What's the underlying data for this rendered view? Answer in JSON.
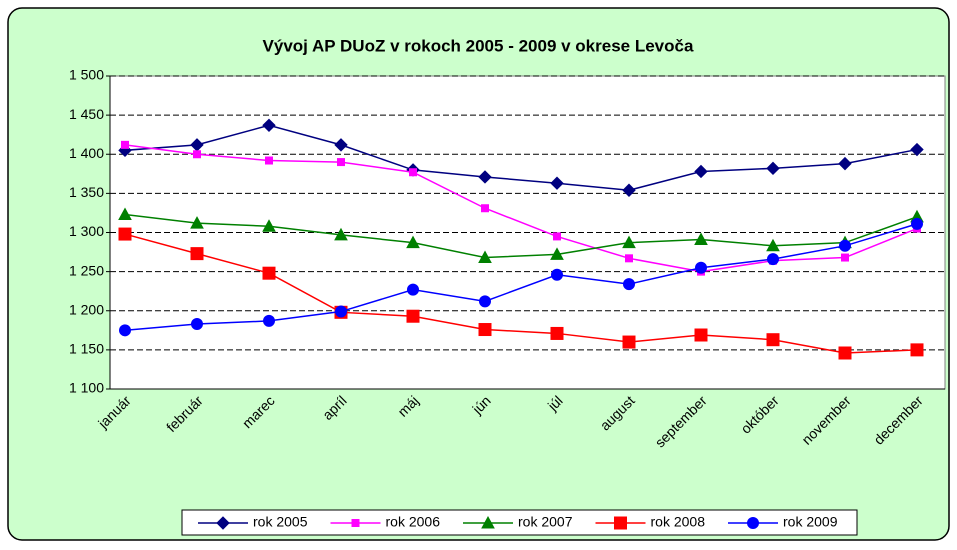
{
  "chart_data": {
    "type": "line",
    "title": "Vývoj AP DUoZ v rokoch 2005 - 2009 v okrese Levoča",
    "categories": [
      "január",
      "február",
      "marec",
      "apríl",
      "máj",
      "jún",
      "júl",
      "august",
      "september",
      "október",
      "november",
      "december"
    ],
    "series": [
      {
        "name": "rok 2005",
        "color": "#000080",
        "marker": "diamond",
        "values": [
          1405,
          1412,
          1437,
          1412,
          1380,
          1371,
          1363,
          1354,
          1378,
          1382,
          1388,
          1406
        ]
      },
      {
        "name": "rok 2006",
        "color": "#ff00ff",
        "marker": "small-square",
        "values": [
          1412,
          1400,
          1392,
          1390,
          1377,
          1331,
          1295,
          1267,
          1250,
          1264,
          1268,
          1305
        ]
      },
      {
        "name": "rok 2007",
        "color": "#008000",
        "marker": "triangle",
        "values": [
          1323,
          1312,
          1308,
          1297,
          1287,
          1268,
          1272,
          1287,
          1291,
          1283,
          1287,
          1320
        ]
      },
      {
        "name": "rok 2008",
        "color": "#ff0000",
        "marker": "square",
        "values": [
          1298,
          1273,
          1248,
          1198,
          1193,
          1176,
          1171,
          1160,
          1169,
          1163,
          1146,
          1150
        ]
      },
      {
        "name": "rok 2009",
        "color": "#0000ff",
        "marker": "circle",
        "values": [
          1175,
          1183,
          1187,
          1199,
          1227,
          1212,
          1246,
          1234,
          1255,
          1266,
          1283,
          1311
        ]
      }
    ],
    "ylim": [
      1100,
      1500
    ],
    "yticks": [
      {
        "value": 1100,
        "label": "1 100"
      },
      {
        "value": 1150,
        "label": "1 150"
      },
      {
        "value": 1200,
        "label": "1 200"
      },
      {
        "value": 1250,
        "label": "1 250"
      },
      {
        "value": 1300,
        "label": "1 300"
      },
      {
        "value": 1350,
        "label": "1 350"
      },
      {
        "value": 1400,
        "label": "1 400"
      },
      {
        "value": 1450,
        "label": "1 450"
      },
      {
        "value": 1500,
        "label": "1 500"
      }
    ],
    "grid": true,
    "legend": "bottom"
  }
}
